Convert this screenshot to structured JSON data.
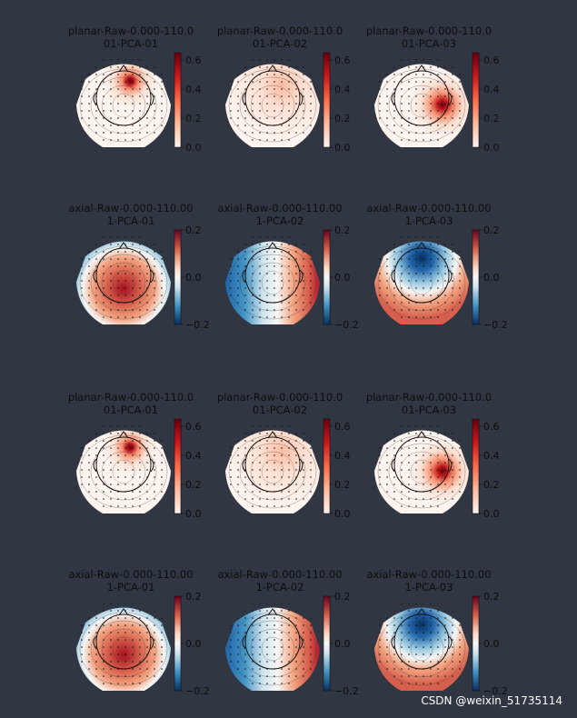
{
  "chart_data": {
    "type": "heatmap",
    "description_kind": "MEG topomaps (PCA projector components)",
    "rows": [
      {
        "panels": [
          {
            "title_line1": "planar-Raw-0.000-110.0",
            "title_line2": "01-PCA-01",
            "hotspot": "left-frontal-focal"
          },
          {
            "title_line1": "planar-Raw-0.000-110.0",
            "title_line2": "01-PCA-02",
            "hotspot": "diffuse-right"
          },
          {
            "title_line1": "planar-Raw-0.000-110.0",
            "title_line2": "01-PCA-03",
            "hotspot": "right-temporal-focal"
          }
        ],
        "colormap": "Reds",
        "scale_min": 0.0,
        "scale_max": 0.65,
        "ticks": [
          "0.0",
          "0.2",
          "0.4",
          "0.6"
        ],
        "tick_values": [
          0.0,
          0.2,
          0.4,
          0.6
        ]
      },
      {
        "panels": [
          {
            "title_line1": "axial-Raw-0.000-110.00",
            "title_line2": "1-PCA-01",
            "hotspot": "posterior-positive"
          },
          {
            "title_line1": "axial-Raw-0.000-110.00",
            "title_line2": "1-PCA-02",
            "hotspot": "left-right-dipole"
          },
          {
            "title_line1": "axial-Raw-0.000-110.00",
            "title_line2": "1-PCA-03",
            "hotspot": "frontal-negative"
          }
        ],
        "colormap": "RdBu_r",
        "scale_min": -0.2,
        "scale_max": 0.2,
        "ticks": [
          "0.2",
          "0.0",
          "−0.2"
        ],
        "tick_values": [
          0.2,
          0.0,
          -0.2
        ]
      },
      {
        "panels": [
          {
            "title_line1": "planar-Raw-0.000-110.0",
            "title_line2": "01-PCA-01",
            "hotspot": "left-frontal-focal"
          },
          {
            "title_line1": "planar-Raw-0.000-110.0",
            "title_line2": "01-PCA-02",
            "hotspot": "diffuse-right"
          },
          {
            "title_line1": "planar-Raw-0.000-110.0",
            "title_line2": "01-PCA-03",
            "hotspot": "right-temporal-focal"
          }
        ],
        "colormap": "Reds",
        "scale_min": 0.0,
        "scale_max": 0.65,
        "ticks": [
          "0.0",
          "0.2",
          "0.4",
          "0.6"
        ],
        "tick_values": [
          0.0,
          0.2,
          0.4,
          0.6
        ]
      },
      {
        "panels": [
          {
            "title_line1": "axial-Raw-0.000-110.00",
            "title_line2": "1-PCA-01",
            "hotspot": "posterior-positive"
          },
          {
            "title_line1": "axial-Raw-0.000-110.00",
            "title_line2": "1-PCA-02",
            "hotspot": "left-right-dipole"
          },
          {
            "title_line1": "axial-Raw-0.000-110.00",
            "title_line2": "1-PCA-03",
            "hotspot": "frontal-negative"
          }
        ],
        "colormap": "RdBu_r",
        "scale_min": -0.2,
        "scale_max": 0.2,
        "ticks": [
          "0.2",
          "0.0",
          "−0.2"
        ],
        "tick_values": [
          0.2,
          0.0,
          -0.2
        ]
      }
    ]
  },
  "colors": {
    "background": "#313742",
    "text": "#0c0c0c",
    "watermark": "#ffffff"
  },
  "watermark": "CSDN @weixin_51735114"
}
